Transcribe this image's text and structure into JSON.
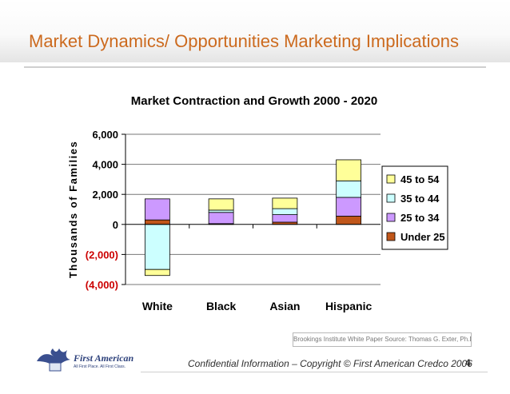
{
  "slide": {
    "title": "Market Dynamics/ Opportunities Marketing Implications",
    "source": "Brookings Institute White Paper Source: Thomas G. Exter, Ph.D.",
    "footer": "Confidential Information – Copyright © First American Credco 2006",
    "page_number": "4",
    "logo": {
      "name": "First American",
      "tagline": "All First Place. All First Class."
    }
  },
  "chart_data": {
    "type": "bar",
    "stacked": true,
    "title": "Market Contraction and Growth 2000 - 2020",
    "xlabel": "",
    "ylabel": "Thousands of Families",
    "ylim": [
      -4000,
      6000
    ],
    "yticks": [
      6000,
      4000,
      2000,
      0,
      -2000,
      -4000
    ],
    "ytick_labels": [
      "6,000",
      "4,000",
      "2,000",
      "0",
      "(2,000)",
      "(4,000)"
    ],
    "categories": [
      "White",
      "Black",
      "Asian",
      "Hispanic"
    ],
    "series": [
      {
        "name": "Under 25",
        "color": "#c0561a",
        "values": [
          300,
          50,
          150,
          550
        ]
      },
      {
        "name": "25 to 34",
        "color": "#cc99ff",
        "values": [
          1400,
          750,
          500,
          1250
        ]
      },
      {
        "name": "35 to 44",
        "color": "#ccffff",
        "values": [
          -3000,
          150,
          400,
          1100
        ]
      },
      {
        "name": "45 to 54",
        "color": "#ffff99",
        "values": [
          -400,
          750,
          700,
          1400
        ]
      }
    ],
    "legend_order": [
      "45 to 54",
      "35 to 44",
      "25 to 34",
      "Under 25"
    ],
    "legend_position": "right",
    "grid": true
  }
}
